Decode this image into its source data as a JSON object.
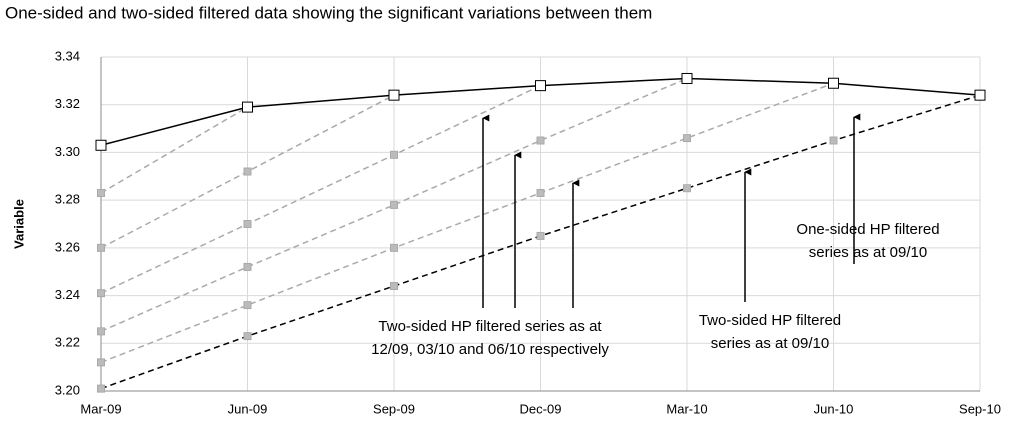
{
  "chart_data": {
    "type": "line",
    "title": "One-sided and two-sided filtered data showing the significant variations between them",
    "y_label": "Variable",
    "categories": [
      "Mar-09",
      "Jun-09",
      "Sep-09",
      "Dec-09",
      "Mar-10",
      "Jun-10",
      "Sep-10"
    ],
    "ylim": [
      3.2,
      3.34
    ],
    "yticks": [
      {
        "value": 3.2,
        "label": "3.20"
      },
      {
        "value": 3.22,
        "label": "3.22"
      },
      {
        "value": 3.24,
        "label": "3.24"
      },
      {
        "value": 3.26,
        "label": "3.26"
      },
      {
        "value": 3.28,
        "label": "3.28"
      },
      {
        "value": 3.3,
        "label": "3.30"
      },
      {
        "value": 3.32,
        "label": "3.32"
      },
      {
        "value": 3.34,
        "label": "3.34"
      }
    ],
    "grid": true,
    "series": [
      {
        "color": "#aaaaaa",
        "dashed": true,
        "values": [
          3.283,
          3.319,
          null,
          null,
          null,
          null,
          null
        ]
      },
      {
        "color": "#aaaaaa",
        "dashed": true,
        "values": [
          3.26,
          3.292,
          3.324,
          null,
          null,
          null,
          null
        ]
      },
      {
        "color": "#aaaaaa",
        "dashed": true,
        "values": [
          3.241,
          3.27,
          3.299,
          3.328,
          null,
          null,
          null
        ]
      },
      {
        "color": "#aaaaaa",
        "dashed": true,
        "values": [
          3.225,
          3.252,
          3.278,
          3.305,
          3.331,
          null,
          null
        ]
      },
      {
        "color": "#aaaaaa",
        "dashed": true,
        "values": [
          3.212,
          3.236,
          3.26,
          3.283,
          3.306,
          3.329,
          null
        ]
      },
      {
        "color": "#000000",
        "dashed": true,
        "values": [
          3.201,
          3.223,
          3.244,
          3.265,
          3.285,
          3.305,
          3.324
        ]
      },
      {
        "color": "#000000",
        "dashed": false,
        "values": [
          3.303,
          3.319,
          3.324,
          3.328,
          3.331,
          3.329,
          3.324
        ]
      }
    ],
    "annotations": [
      [
        "Two-sided HP filtered series as at",
        "12/09, 03/10 and 06/10 respectively"
      ],
      [
        "Two-sided HP filtered",
        "series as at 09/10"
      ],
      [
        "One-sided HP filtered",
        "series as at 09/10"
      ]
    ]
  }
}
